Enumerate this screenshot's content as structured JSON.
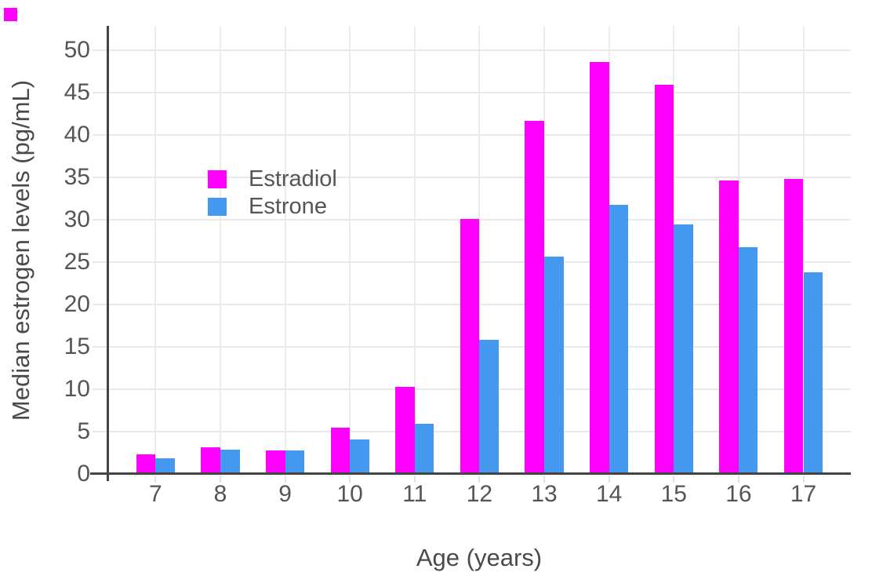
{
  "page": {
    "background": "#ffffff"
  },
  "corner_square": {
    "color": "#ff00ff"
  },
  "chart_data": {
    "type": "bar",
    "title": "",
    "xlabel": "Age (years)",
    "ylabel": "Median estrogen levels (pg/mL)",
    "categories": [
      "7",
      "8",
      "9",
      "10",
      "11",
      "12",
      "13",
      "14",
      "15",
      "16",
      "17"
    ],
    "series": [
      {
        "name": "Estradiol",
        "color": "#ff00ff",
        "values": [
          2.3,
          3.1,
          2.7,
          5.4,
          10.2,
          30.1,
          41.7,
          48.6,
          45.9,
          34.6,
          34.8
        ]
      },
      {
        "name": "Estrone",
        "color": "#4499ee",
        "values": [
          1.8,
          2.8,
          2.7,
          4.0,
          5.9,
          15.8,
          25.6,
          31.7,
          29.4,
          26.7,
          23.8
        ]
      }
    ],
    "ylim": [
      0,
      52.9
    ],
    "yticks": [
      0,
      5,
      10,
      15,
      20,
      25,
      30,
      35,
      40,
      45,
      50
    ],
    "grid": true,
    "legend_position": "inside-top-left",
    "colors": {
      "axis": "#444444",
      "grid": "#e9e9e9",
      "tick_text": "#555555",
      "title_text": "#4a4a4a"
    }
  }
}
